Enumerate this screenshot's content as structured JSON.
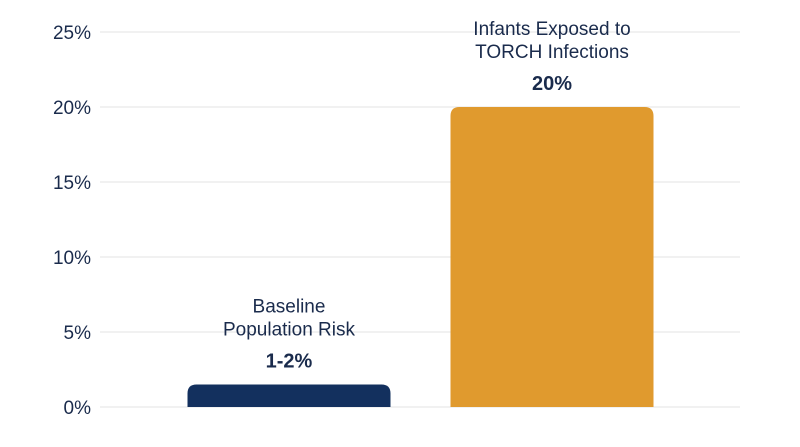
{
  "chart_data": {
    "type": "bar",
    "categories": [
      [
        "Baseline",
        "Population Risk"
      ],
      [
        "Infants Exposed to",
        "TORCH Infections"
      ]
    ],
    "values": [
      1.5,
      20
    ],
    "data_labels": [
      "1-2%",
      "20%"
    ],
    "ylim": [
      0,
      25
    ],
    "yticks": [
      0,
      5,
      10,
      15,
      20,
      25
    ],
    "ytick_labels": [
      "0%",
      "5%",
      "10%",
      "15%",
      "20%",
      "25%"
    ],
    "title": "",
    "xlabel": "",
    "ylabel": "",
    "grid": true,
    "colors": [
      "#13305e",
      "#e09a2e"
    ],
    "text_color": "#1a2b4c"
  }
}
